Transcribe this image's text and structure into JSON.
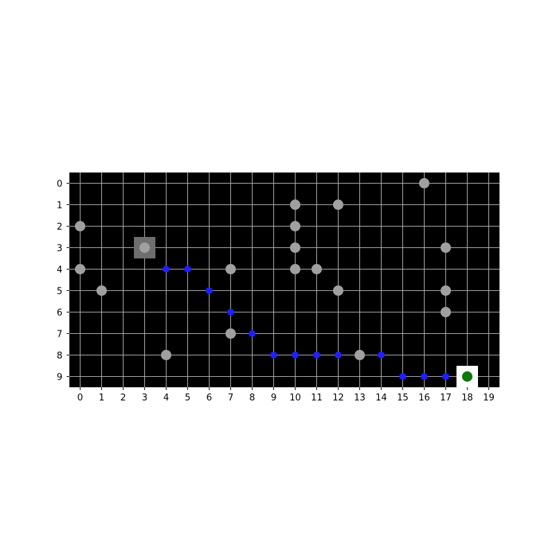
{
  "grid": {
    "cols": 20,
    "rows": 10,
    "x_ticks": [
      "0",
      "1",
      "2",
      "3",
      "4",
      "5",
      "6",
      "7",
      "8",
      "9",
      "10",
      "11",
      "12",
      "13",
      "14",
      "15",
      "16",
      "17",
      "18",
      "19"
    ],
    "y_ticks": [
      "0",
      "1",
      "2",
      "3",
      "4",
      "5",
      "6",
      "7",
      "8",
      "9"
    ]
  },
  "colors": {
    "background": "#000000",
    "grid_lines": "#b0b0b0",
    "obstacle": "#a0a0a0",
    "path": "#1f1fff",
    "start_marker": "#6e6e6e",
    "goal_marker": "#ffffff",
    "agent": "#0a7a0a",
    "tick_text": "#000000"
  },
  "start": {
    "x": 3,
    "y": 3
  },
  "goal": {
    "x": 18,
    "y": 9
  },
  "agent": {
    "x": 18,
    "y": 9
  },
  "obstacles": [
    {
      "x": 16,
      "y": 0
    },
    {
      "x": 10,
      "y": 1
    },
    {
      "x": 12,
      "y": 1
    },
    {
      "x": 0,
      "y": 2
    },
    {
      "x": 10,
      "y": 2
    },
    {
      "x": 3,
      "y": 3
    },
    {
      "x": 10,
      "y": 3
    },
    {
      "x": 17,
      "y": 3
    },
    {
      "x": 0,
      "y": 4
    },
    {
      "x": 7,
      "y": 4
    },
    {
      "x": 10,
      "y": 4
    },
    {
      "x": 11,
      "y": 4
    },
    {
      "x": 1,
      "y": 5
    },
    {
      "x": 12,
      "y": 5
    },
    {
      "x": 17,
      "y": 5
    },
    {
      "x": 17,
      "y": 6
    },
    {
      "x": 7,
      "y": 7
    },
    {
      "x": 4,
      "y": 8
    },
    {
      "x": 13,
      "y": 8
    }
  ],
  "path": [
    {
      "x": 4,
      "y": 4
    },
    {
      "x": 5,
      "y": 4
    },
    {
      "x": 6,
      "y": 5
    },
    {
      "x": 7,
      "y": 6
    },
    {
      "x": 8,
      "y": 7
    },
    {
      "x": 9,
      "y": 8
    },
    {
      "x": 10,
      "y": 8
    },
    {
      "x": 11,
      "y": 8
    },
    {
      "x": 12,
      "y": 8
    },
    {
      "x": 14,
      "y": 8
    },
    {
      "x": 15,
      "y": 9
    },
    {
      "x": 16,
      "y": 9
    },
    {
      "x": 17,
      "y": 9
    }
  ]
}
